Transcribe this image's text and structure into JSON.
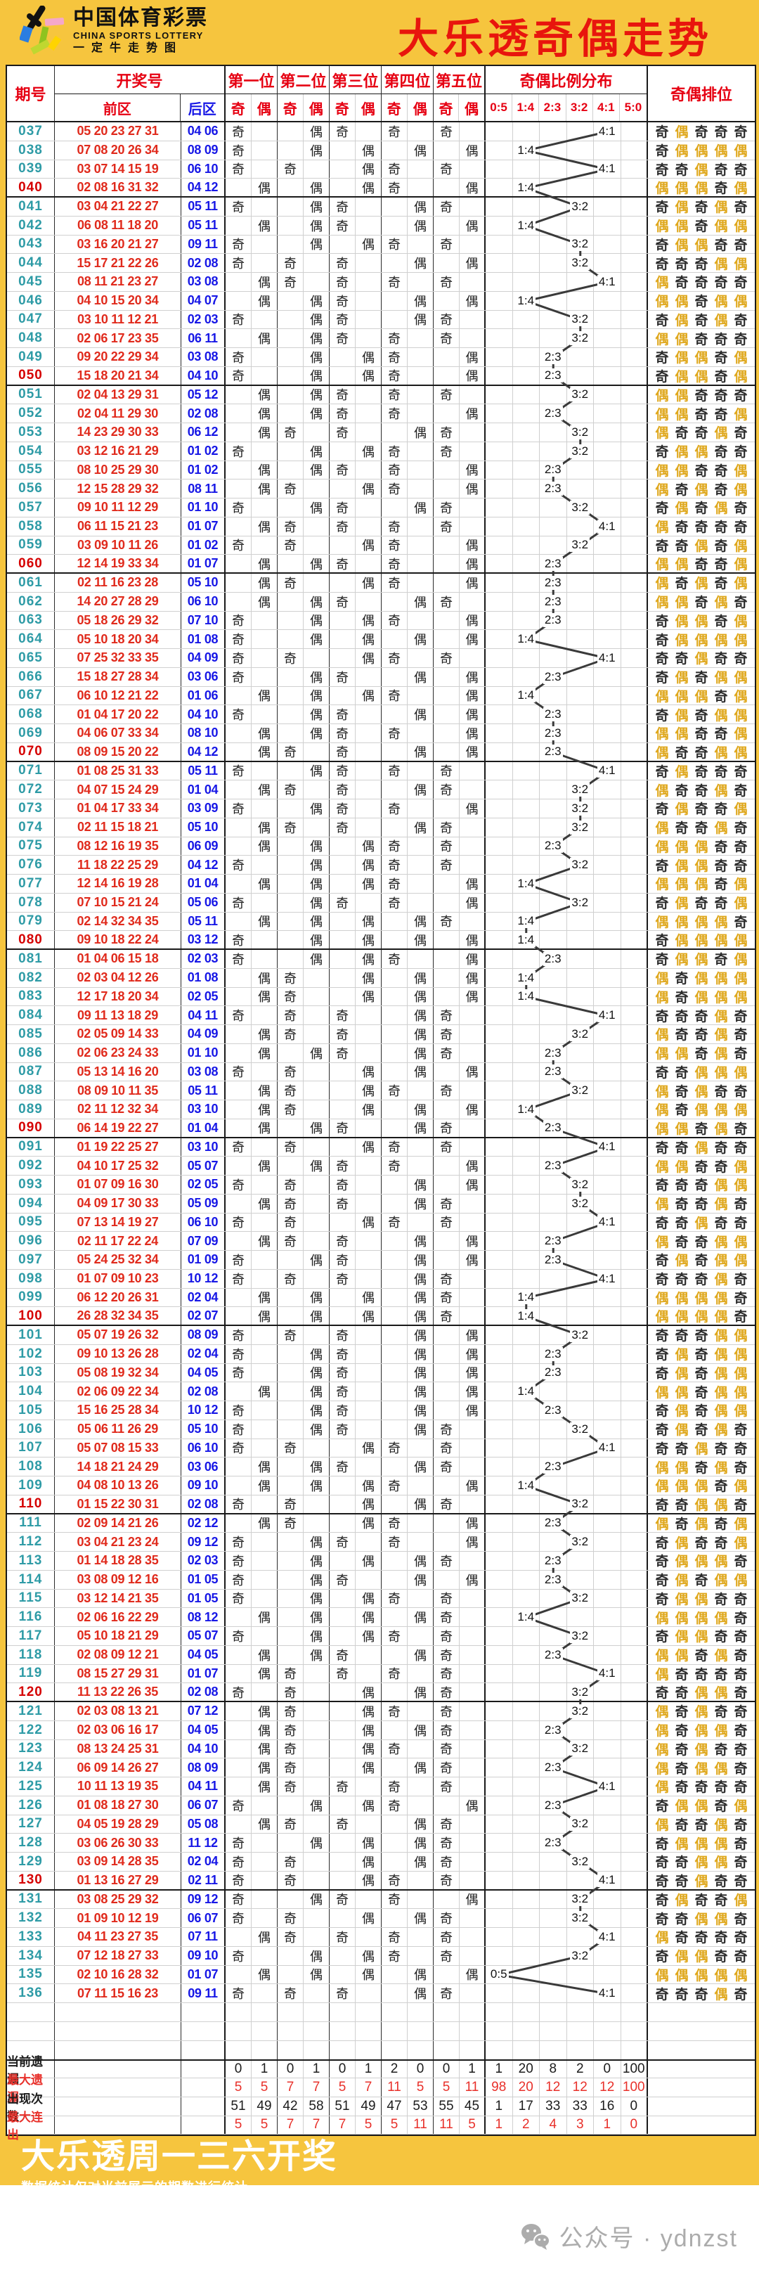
{
  "header": {
    "logo": {
      "cn": "中国体育彩票",
      "en": "CHINA SPORTS LOTTERY",
      "tagline": "一定牛走势图"
    },
    "title": "大乐透奇偶走势"
  },
  "table": {
    "headers": {
      "period": "期号",
      "draw": "开奖号",
      "front": "前区",
      "back": "后区",
      "positions": [
        "第一位",
        "第二位",
        "第三位",
        "第四位",
        "第五位"
      ],
      "odd": "奇",
      "even": "偶",
      "ratio_group": "奇偶比例分布",
      "ratio_cols": [
        "0:5",
        "1:4",
        "2:3",
        "3:2",
        "4:1",
        "5:0"
      ],
      "rank": "奇偶排位"
    },
    "empty_rows": 3
  },
  "chart_data": {
    "type": "table",
    "title": "大乐透奇偶走势",
    "columns": [
      "期号",
      "前区",
      "后区"
    ],
    "ratio_categories": [
      "0:5",
      "1:4",
      "2:3",
      "3:2",
      "4:1",
      "5:0"
    ],
    "rows": [
      [
        "037",
        "05 20 23 27 31",
        "04 06"
      ],
      [
        "038",
        "07 08 20 26 34",
        "08 09"
      ],
      [
        "039",
        "03 07 14 15 19",
        "06 10"
      ],
      [
        "040",
        "02 08 16 31 32",
        "04 12"
      ],
      [
        "041",
        "03 04 21 22 27",
        "05 11"
      ],
      [
        "042",
        "06 08 11 18 20",
        "05 11"
      ],
      [
        "043",
        "03 16 20 21 27",
        "09 11"
      ],
      [
        "044",
        "15 17 21 22 26",
        "02 08"
      ],
      [
        "045",
        "08 11 21 23 27",
        "03 08"
      ],
      [
        "046",
        "04 10 15 20 34",
        "04 07"
      ],
      [
        "047",
        "03 10 11 12 21",
        "02 03"
      ],
      [
        "048",
        "02 06 17 23 35",
        "06 11"
      ],
      [
        "049",
        "09 20 22 29 34",
        "03 08"
      ],
      [
        "050",
        "15 18 20 21 34",
        "04 10"
      ],
      [
        "051",
        "02 04 13 29 31",
        "05 12"
      ],
      [
        "052",
        "02 04 11 29 30",
        "02 08"
      ],
      [
        "053",
        "14 23 29 30 33",
        "06 12"
      ],
      [
        "054",
        "03 12 16 21 29",
        "01 02"
      ],
      [
        "055",
        "08 10 25 29 30",
        "01 02"
      ],
      [
        "056",
        "12 15 28 29 32",
        "08 11"
      ],
      [
        "057",
        "09 10 11 12 29",
        "01 10"
      ],
      [
        "058",
        "06 11 15 21 23",
        "01 07"
      ],
      [
        "059",
        "03 09 10 11 26",
        "01 02"
      ],
      [
        "060",
        "12 14 19 33 34",
        "01 07"
      ],
      [
        "061",
        "02 11 16 23 28",
        "05 10"
      ],
      [
        "062",
        "14 20 27 28 29",
        "06 10"
      ],
      [
        "063",
        "05 18 26 29 32",
        "07 10"
      ],
      [
        "064",
        "05 10 18 20 34",
        "01 08"
      ],
      [
        "065",
        "07 25 32 33 35",
        "04 09"
      ],
      [
        "066",
        "15 18 27 28 34",
        "03 06"
      ],
      [
        "067",
        "06 10 12 21 22",
        "01 06"
      ],
      [
        "068",
        "01 04 17 20 22",
        "04 10"
      ],
      [
        "069",
        "04 06 07 33 34",
        "08 10"
      ],
      [
        "070",
        "08 09 15 20 22",
        "04 12"
      ],
      [
        "071",
        "01 08 25 31 33",
        "05 11"
      ],
      [
        "072",
        "04 07 15 24 29",
        "01 04"
      ],
      [
        "073",
        "01 04 17 33 34",
        "03 09"
      ],
      [
        "074",
        "02 11 15 18 21",
        "05 10"
      ],
      [
        "075",
        "08 12 16 19 35",
        "06 09"
      ],
      [
        "076",
        "11 18 22 25 29",
        "04 12"
      ],
      [
        "077",
        "12 14 16 19 28",
        "01 04"
      ],
      [
        "078",
        "07 10 15 21 24",
        "05 06"
      ],
      [
        "079",
        "02 14 32 34 35",
        "05 11"
      ],
      [
        "080",
        "09 10 18 22 24",
        "03 12"
      ],
      [
        "081",
        "01 04 06 15 18",
        "02 03"
      ],
      [
        "082",
        "02 03 04 12 26",
        "01 08"
      ],
      [
        "083",
        "12 17 18 20 34",
        "02 05"
      ],
      [
        "084",
        "09 11 13 18 29",
        "04 11"
      ],
      [
        "085",
        "02 05 09 14 33",
        "04 09"
      ],
      [
        "086",
        "02 06 23 24 33",
        "01 10"
      ],
      [
        "087",
        "05 13 14 16 20",
        "03 08"
      ],
      [
        "088",
        "08 09 10 11 35",
        "05 11"
      ],
      [
        "089",
        "02 11 12 32 34",
        "03 10"
      ],
      [
        "090",
        "06 14 19 22 27",
        "01 04"
      ],
      [
        "091",
        "01 19 22 25 27",
        "03 10"
      ],
      [
        "092",
        "04 10 17 25 32",
        "05 07"
      ],
      [
        "093",
        "01 07 09 16 30",
        "02 05"
      ],
      [
        "094",
        "04 09 17 30 33",
        "05 09"
      ],
      [
        "095",
        "07 13 14 19 27",
        "06 10"
      ],
      [
        "096",
        "02 11 17 22 24",
        "07 09"
      ],
      [
        "097",
        "05 24 25 32 34",
        "01 09"
      ],
      [
        "098",
        "01 07 09 10 23",
        "10 12"
      ],
      [
        "099",
        "06 12 20 26 31",
        "02 04"
      ],
      [
        "100",
        "26 28 32 34 35",
        "02 07"
      ],
      [
        "101",
        "05 07 19 26 32",
        "08 09"
      ],
      [
        "102",
        "09 10 13 26 28",
        "02 04"
      ],
      [
        "103",
        "05 08 19 32 34",
        "04 05"
      ],
      [
        "104",
        "02 06 09 22 34",
        "02 08"
      ],
      [
        "105",
        "15 16 25 28 34",
        "10 12"
      ],
      [
        "106",
        "05 06 11 26 29",
        "05 10"
      ],
      [
        "107",
        "05 07 08 15 33",
        "06 10"
      ],
      [
        "108",
        "14 18 21 24 29",
        "03 06"
      ],
      [
        "109",
        "04 08 10 13 26",
        "09 10"
      ],
      [
        "110",
        "01 15 22 30 31",
        "02 08"
      ],
      [
        "111",
        "02 09 14 21 26",
        "02 12"
      ],
      [
        "112",
        "03 04 21 23 24",
        "09 12"
      ],
      [
        "113",
        "01 14 18 28 35",
        "02 03"
      ],
      [
        "114",
        "03 08 09 12 16",
        "01 05"
      ],
      [
        "115",
        "03 12 14 21 35",
        "01 05"
      ],
      [
        "116",
        "02 06 16 22 29",
        "08 12"
      ],
      [
        "117",
        "05 10 18 21 29",
        "05 07"
      ],
      [
        "118",
        "02 08 09 12 21",
        "04 05"
      ],
      [
        "119",
        "08 15 27 29 31",
        "01 07"
      ],
      [
        "120",
        "11 13 22 26 35",
        "02 08"
      ],
      [
        "121",
        "02 03 08 13 21",
        "07 12"
      ],
      [
        "122",
        "02 03 06 16 17",
        "04 05"
      ],
      [
        "123",
        "08 13 24 25 31",
        "04 10"
      ],
      [
        "124",
        "06 09 14 26 27",
        "08 09"
      ],
      [
        "125",
        "10 11 13 19 35",
        "04 11"
      ],
      [
        "126",
        "01 08 18 27 30",
        "06 07"
      ],
      [
        "127",
        "04 05 19 28 29",
        "05 08"
      ],
      [
        "128",
        "03 06 26 30 33",
        "11 12"
      ],
      [
        "129",
        "03 09 14 28 35",
        "02 04"
      ],
      [
        "130",
        "01 13 16 27 29",
        "02 11"
      ],
      [
        "131",
        "03 08 25 29 32",
        "09 12"
      ],
      [
        "132",
        "01 09 10 12 19",
        "06 07"
      ],
      [
        "133",
        "04 11 23 27 35",
        "07 11"
      ],
      [
        "134",
        "07 12 18 27 33",
        "09 10"
      ],
      [
        "135",
        "02 10 16 28 32",
        "01 07"
      ],
      [
        "136",
        "07 11 15 16 23",
        "09 11"
      ]
    ],
    "stats": [
      {
        "label": "当前遗漏",
        "tone": "dark",
        "values": [
          "0",
          "1",
          "0",
          "1",
          "0",
          "1",
          "2",
          "0",
          "0",
          "1",
          "1",
          "20",
          "8",
          "2",
          "0",
          "100"
        ]
      },
      {
        "label": "最大遗漏",
        "tone": "red",
        "values": [
          "5",
          "5",
          "7",
          "7",
          "5",
          "7",
          "11",
          "5",
          "5",
          "11",
          "98",
          "20",
          "12",
          "12",
          "12",
          "100"
        ]
      },
      {
        "label": "出现次数",
        "tone": "dark",
        "values": [
          "51",
          "49",
          "42",
          "58",
          "51",
          "49",
          "47",
          "53",
          "55",
          "45",
          "1",
          "17",
          "33",
          "33",
          "16",
          "0"
        ]
      },
      {
        "label": "最大连出",
        "tone": "red",
        "values": [
          "5",
          "5",
          "7",
          "7",
          "7",
          "5",
          "5",
          "11",
          "11",
          "5",
          "1",
          "2",
          "4",
          "3",
          "1",
          "0"
        ]
      }
    ]
  },
  "footer": {
    "headline": "大乐透周一三六开奖",
    "note": "数据统计仅对当前展示的期数进行统计",
    "wechat": "公众号 · ydnzst"
  },
  "colors": {
    "background": "#F6C53E",
    "title_red": "#E8150D",
    "header_red": "#E60012",
    "back_blue": "#1717E6",
    "front_red": "#E02A1C",
    "period_teal": "#2E9BA6",
    "period_red": "#D50000",
    "even_gold": "#DFA71B",
    "grid": "#CFCFCF",
    "ink": "#1A1A1A",
    "stat_red": "#E8302A",
    "trend_line": "#3A3A3A",
    "wechat_gray": "#ACACAC"
  }
}
